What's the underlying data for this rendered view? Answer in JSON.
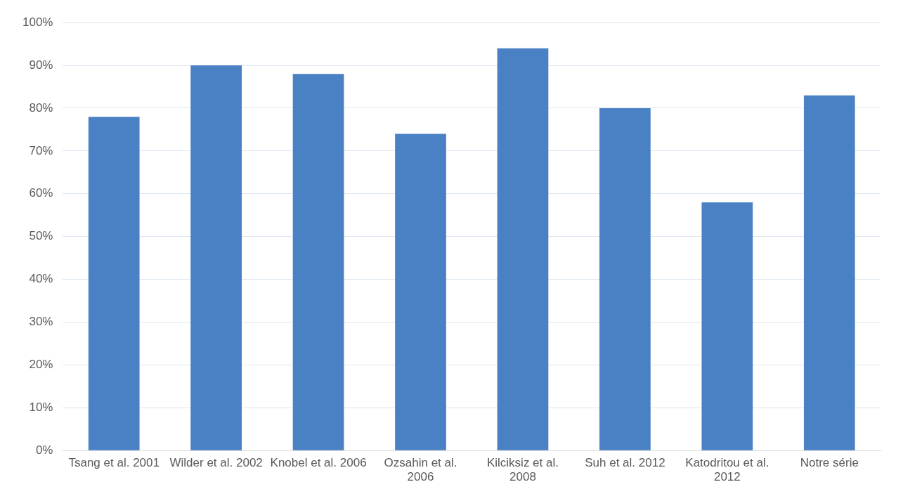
{
  "chart_data": {
    "type": "bar",
    "categories": [
      "Tsang et al. 2001",
      "Wilder et al. 2002",
      "Knobel et al. 2006",
      "Ozsahin et al. 2006",
      "Kilciksiz et al. 2008",
      "Suh et al. 2012",
      "Katodritou et al. 2012",
      "Notre série"
    ],
    "values": [
      78,
      90,
      88,
      74,
      94,
      80,
      58,
      83
    ],
    "color": "#4a80c4",
    "ylim": [
      0,
      100
    ],
    "yticks": [
      {
        "value": 0,
        "label": "0%"
      },
      {
        "value": 10,
        "label": "10%"
      },
      {
        "value": 20,
        "label": "20%"
      },
      {
        "value": 30,
        "label": "30%"
      },
      {
        "value": 40,
        "label": "40%"
      },
      {
        "value": 50,
        "label": "50%"
      },
      {
        "value": 60,
        "label": "60%"
      },
      {
        "value": 70,
        "label": "70%"
      },
      {
        "value": 80,
        "label": "80%"
      },
      {
        "value": 90,
        "label": "90%"
      },
      {
        "value": 100,
        "label": "100%"
      }
    ],
    "grid": "y",
    "legend": false
  }
}
